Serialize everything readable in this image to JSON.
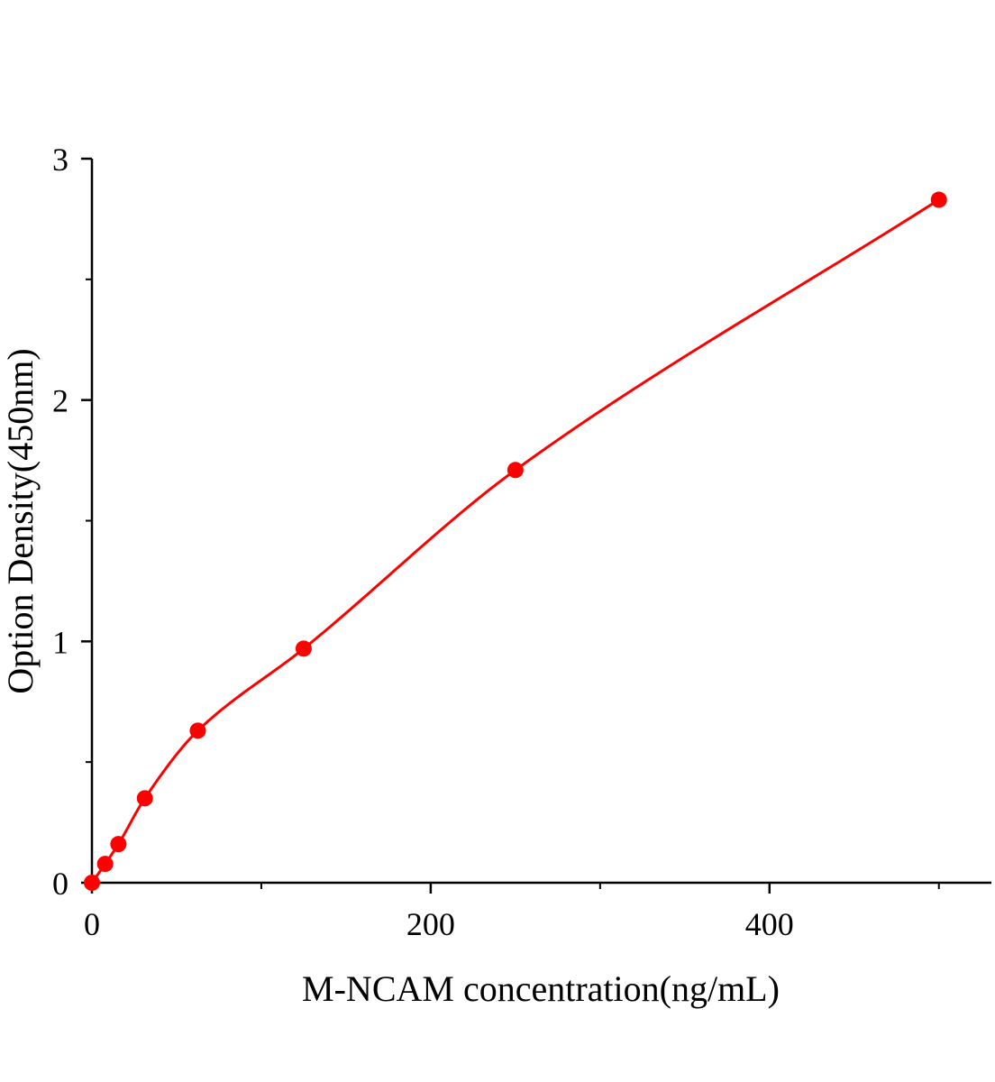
{
  "chart_data": {
    "type": "scatter",
    "title": "",
    "xlabel": "M-NCAM concentration(ng/mL)",
    "ylabel": "Option Density(450nm)",
    "xlim": [
      0,
      531
    ],
    "ylim": [
      0,
      3
    ],
    "x_ticks": [
      0,
      200,
      400
    ],
    "x_tick_labels": [
      "0",
      "200",
      "400"
    ],
    "x_minor_ticks": [
      100,
      300,
      500
    ],
    "y_ticks": [
      0,
      1,
      2,
      3
    ],
    "y_tick_labels": [
      "0",
      "1",
      "2",
      "3"
    ],
    "y_minor_ticks": [
      0.5,
      1.5,
      2.5
    ],
    "grid": false,
    "color": "#ff0000",
    "series": [
      {
        "x": [
          0,
          7.81,
          15.63,
          31.25,
          62.5,
          125,
          250,
          500
        ],
        "y": [
          0.0,
          0.078,
          0.16,
          0.35,
          0.63,
          0.97,
          1.71,
          2.83
        ],
        "fit_line": true
      }
    ]
  }
}
